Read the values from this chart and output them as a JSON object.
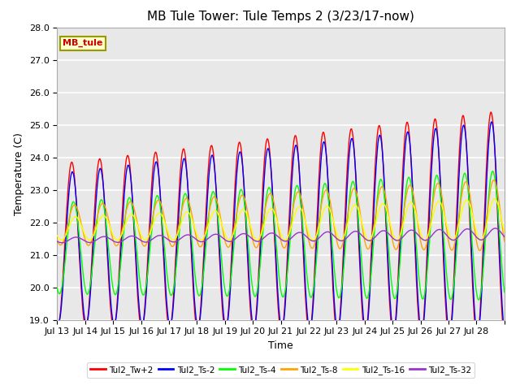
{
  "title": "MB Tule Tower: Tule Temps 2 (3/23/17-now)",
  "xlabel": "Time",
  "ylabel": "Temperature (C)",
  "ylim": [
    19.0,
    28.0
  ],
  "yticks": [
    19.0,
    20.0,
    21.0,
    22.0,
    23.0,
    24.0,
    25.0,
    26.0,
    27.0,
    28.0
  ],
  "xtick_labels": [
    "Jul 13",
    "Jul 14",
    "Jul 15",
    "Jul 16",
    "Jul 17",
    "Jul 18",
    "Jul 19",
    "Jul 20",
    "Jul 21",
    "Jul 22",
    "Jul 23",
    "Jul 24",
    "Jul 25",
    "Jul 26",
    "Jul 27",
    "Jul 28"
  ],
  "series_colors": [
    "red",
    "blue",
    "lime",
    "orange",
    "yellow",
    "#9933cc"
  ],
  "series_names": [
    "Tul2_Tw+2",
    "Tul2_Ts-2",
    "Tul2_Ts-4",
    "Tul2_Ts-8",
    "Tul2_Ts-16",
    "Tul2_Ts-32"
  ],
  "legend_label": "MB_tule",
  "legend_bg": "#ffffcc",
  "legend_edge": "#999900",
  "bg_color": "#e8e8e8",
  "grid_color": "white",
  "title_fontsize": 11,
  "label_fontsize": 9,
  "tick_fontsize": 8
}
